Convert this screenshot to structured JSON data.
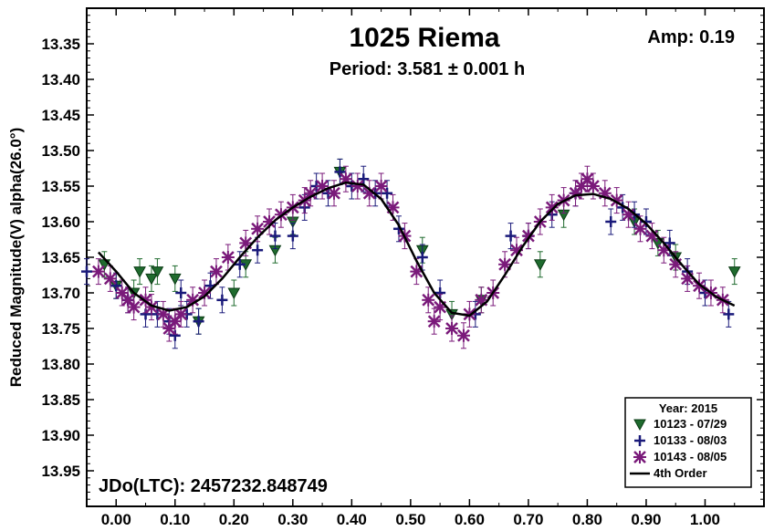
{
  "chart_data": {
    "type": "scatter",
    "title": "1025 Riema",
    "subtitle": "Period: 3.581 ± 0.001 h",
    "amplitude": "Amp: 0.19",
    "jd_label": "JDo(LTC): 2457232.848749",
    "xlabel": "",
    "ylabel": "Reduced Magnitude(V) alpha(26.0°)",
    "xlim": [
      -0.05,
      1.1
    ],
    "ylim": [
      13.3,
      14.0
    ],
    "y_inverted": true,
    "grid": false,
    "x_ticks": [
      "0.00",
      "0.10",
      "0.20",
      "0.30",
      "0.40",
      "0.50",
      "0.60",
      "0.70",
      "0.80",
      "0.90",
      "1.00"
    ],
    "y_ticks": [
      "13.35",
      "13.40",
      "13.45",
      "13.50",
      "13.55",
      "13.60",
      "13.65",
      "13.70",
      "13.75",
      "13.80",
      "13.85",
      "13.90",
      "13.95"
    ],
    "legend_title": "Year: 2015",
    "legend_placement": "bottom-right",
    "series": [
      {
        "name": "10123 - 07/29",
        "marker": "triangle-down",
        "color": "#1f6b2e",
        "x": [
          -0.02,
          0.0,
          0.03,
          0.04,
          0.06,
          0.07,
          0.1,
          0.14,
          0.2,
          0.22,
          0.27,
          0.3,
          0.38,
          0.52,
          0.57,
          0.62,
          0.72,
          0.76,
          0.88,
          0.92,
          0.95,
          1.05
        ],
        "y": [
          13.66,
          13.69,
          13.7,
          13.67,
          13.68,
          13.67,
          13.68,
          13.74,
          13.7,
          13.66,
          13.64,
          13.6,
          13.53,
          13.64,
          13.73,
          13.71,
          13.66,
          13.59,
          13.6,
          13.63,
          13.65,
          13.67
        ]
      },
      {
        "name": "10133 - 08/03",
        "marker": "plus",
        "color": "#1a1a7a",
        "x": [
          -0.05,
          0.0,
          0.02,
          0.05,
          0.07,
          0.09,
          0.1,
          0.11,
          0.12,
          0.14,
          0.16,
          0.18,
          0.21,
          0.24,
          0.27,
          0.3,
          0.32,
          0.34,
          0.36,
          0.38,
          0.4,
          0.42,
          0.44,
          0.46,
          0.48,
          0.52,
          0.55,
          0.61,
          0.67,
          0.7,
          0.74,
          0.78,
          0.84,
          0.86,
          0.88,
          0.9,
          0.94,
          0.97,
          1.0,
          1.04
        ],
        "y": [
          13.67,
          13.69,
          13.71,
          13.73,
          13.73,
          13.74,
          13.76,
          13.7,
          13.73,
          13.74,
          13.69,
          13.71,
          13.66,
          13.64,
          13.62,
          13.62,
          13.58,
          13.55,
          13.56,
          13.53,
          13.55,
          13.54,
          13.56,
          13.56,
          13.61,
          13.65,
          13.7,
          13.73,
          13.62,
          13.62,
          13.59,
          13.56,
          13.6,
          13.58,
          13.59,
          13.6,
          13.63,
          13.67,
          13.7,
          13.73
        ]
      },
      {
        "name": "10143 - 08/05",
        "marker": "asterisk",
        "color": "#7a1a7a",
        "x": [
          -0.03,
          -0.01,
          0.01,
          0.02,
          0.03,
          0.05,
          0.06,
          0.08,
          0.09,
          0.1,
          0.11,
          0.13,
          0.15,
          0.17,
          0.19,
          0.22,
          0.24,
          0.26,
          0.28,
          0.3,
          0.32,
          0.33,
          0.35,
          0.37,
          0.39,
          0.41,
          0.43,
          0.45,
          0.47,
          0.49,
          0.51,
          0.53,
          0.54,
          0.55,
          0.57,
          0.59,
          0.6,
          0.62,
          0.64,
          0.66,
          0.68,
          0.7,
          0.72,
          0.74,
          0.76,
          0.78,
          0.79,
          0.8,
          0.81,
          0.83,
          0.85,
          0.87,
          0.89,
          0.91,
          0.93,
          0.95,
          0.97,
          0.99,
          1.01,
          1.03
        ],
        "y": [
          13.67,
          13.68,
          13.7,
          13.71,
          13.72,
          13.71,
          13.72,
          13.73,
          13.75,
          13.74,
          13.73,
          13.71,
          13.7,
          13.67,
          13.65,
          13.63,
          13.61,
          13.6,
          13.59,
          13.58,
          13.57,
          13.56,
          13.55,
          13.56,
          13.54,
          13.55,
          13.56,
          13.55,
          13.58,
          13.62,
          13.67,
          13.71,
          13.74,
          13.72,
          13.75,
          13.76,
          13.73,
          13.71,
          13.7,
          13.66,
          13.64,
          13.62,
          13.6,
          13.58,
          13.57,
          13.56,
          13.55,
          13.54,
          13.55,
          13.56,
          13.57,
          13.59,
          13.61,
          13.62,
          13.64,
          13.66,
          13.68,
          13.69,
          13.7,
          13.71
        ]
      },
      {
        "name": "4th Order",
        "type": "line",
        "color": "#000000",
        "x": [
          -0.03,
          0.0,
          0.03,
          0.06,
          0.09,
          0.12,
          0.15,
          0.18,
          0.21,
          0.24,
          0.27,
          0.3,
          0.33,
          0.36,
          0.39,
          0.42,
          0.45,
          0.48,
          0.51,
          0.54,
          0.57,
          0.6,
          0.63,
          0.66,
          0.69,
          0.72,
          0.75,
          0.78,
          0.81,
          0.84,
          0.87,
          0.9,
          0.93,
          0.96,
          0.99,
          1.02,
          1.05
        ],
        "y": [
          13.643,
          13.67,
          13.7,
          13.718,
          13.725,
          13.72,
          13.705,
          13.68,
          13.65,
          13.622,
          13.598,
          13.58,
          13.565,
          13.553,
          13.545,
          13.548,
          13.568,
          13.605,
          13.655,
          13.7,
          13.728,
          13.732,
          13.712,
          13.675,
          13.635,
          13.6,
          13.575,
          13.563,
          13.561,
          13.568,
          13.582,
          13.603,
          13.63,
          13.66,
          13.688,
          13.706,
          13.718
        ]
      }
    ]
  }
}
